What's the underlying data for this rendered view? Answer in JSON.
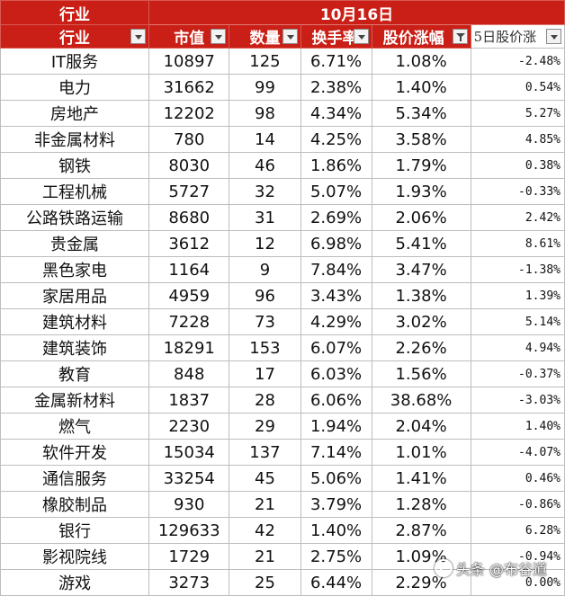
{
  "sheet": {
    "top_header": {
      "industry_label": "行业",
      "date_label": "10月16日"
    },
    "columns": [
      "行业",
      "市值",
      "数量",
      "换手率",
      "股价涨幅",
      "5日股价涨"
    ],
    "rows": [
      [
        "IT服务",
        "10897",
        "125",
        "6.71%",
        "1.08%",
        "-2.48%"
      ],
      [
        "电力",
        "31662",
        "99",
        "2.38%",
        "1.40%",
        "0.54%"
      ],
      [
        "房地产",
        "12202",
        "98",
        "4.34%",
        "5.34%",
        "5.27%"
      ],
      [
        "非金属材料",
        "780",
        "14",
        "4.25%",
        "3.58%",
        "4.85%"
      ],
      [
        "钢铁",
        "8030",
        "46",
        "1.86%",
        "1.79%",
        "0.38%"
      ],
      [
        "工程机械",
        "5727",
        "32",
        "5.07%",
        "1.93%",
        "-0.33%"
      ],
      [
        "公路铁路运输",
        "8680",
        "31",
        "2.69%",
        "2.06%",
        "2.42%"
      ],
      [
        "贵金属",
        "3612",
        "12",
        "6.98%",
        "5.41%",
        "8.61%"
      ],
      [
        "黑色家电",
        "1164",
        "9",
        "7.84%",
        "3.47%",
        "-1.38%"
      ],
      [
        "家居用品",
        "4959",
        "96",
        "3.43%",
        "1.38%",
        "1.39%"
      ],
      [
        "建筑材料",
        "7228",
        "73",
        "4.29%",
        "3.02%",
        "5.14%"
      ],
      [
        "建筑装饰",
        "18291",
        "153",
        "6.07%",
        "2.26%",
        "4.94%"
      ],
      [
        "教育",
        "848",
        "17",
        "6.03%",
        "1.56%",
        "-0.37%"
      ],
      [
        "金属新材料",
        "1837",
        "28",
        "6.06%",
        "38.68%",
        "-3.03%"
      ],
      [
        "燃气",
        "2230",
        "29",
        "1.94%",
        "2.04%",
        "1.40%"
      ],
      [
        "软件开发",
        "15034",
        "137",
        "7.14%",
        "1.01%",
        "-4.07%"
      ],
      [
        "通信服务",
        "33254",
        "45",
        "5.06%",
        "1.41%",
        "0.46%"
      ],
      [
        "橡胶制品",
        "930",
        "21",
        "3.79%",
        "1.28%",
        "-0.86%"
      ],
      [
        "银行",
        "129633",
        "42",
        "1.40%",
        "2.87%",
        "6.28%"
      ],
      [
        "影视院线",
        "1729",
        "21",
        "2.75%",
        "1.09%",
        "-0.94%"
      ],
      [
        "游戏",
        "3273",
        "25",
        "6.44%",
        "2.29%",
        "0.00%"
      ]
    ]
  },
  "watermark": {
    "text": "头条 @布谷道"
  }
}
